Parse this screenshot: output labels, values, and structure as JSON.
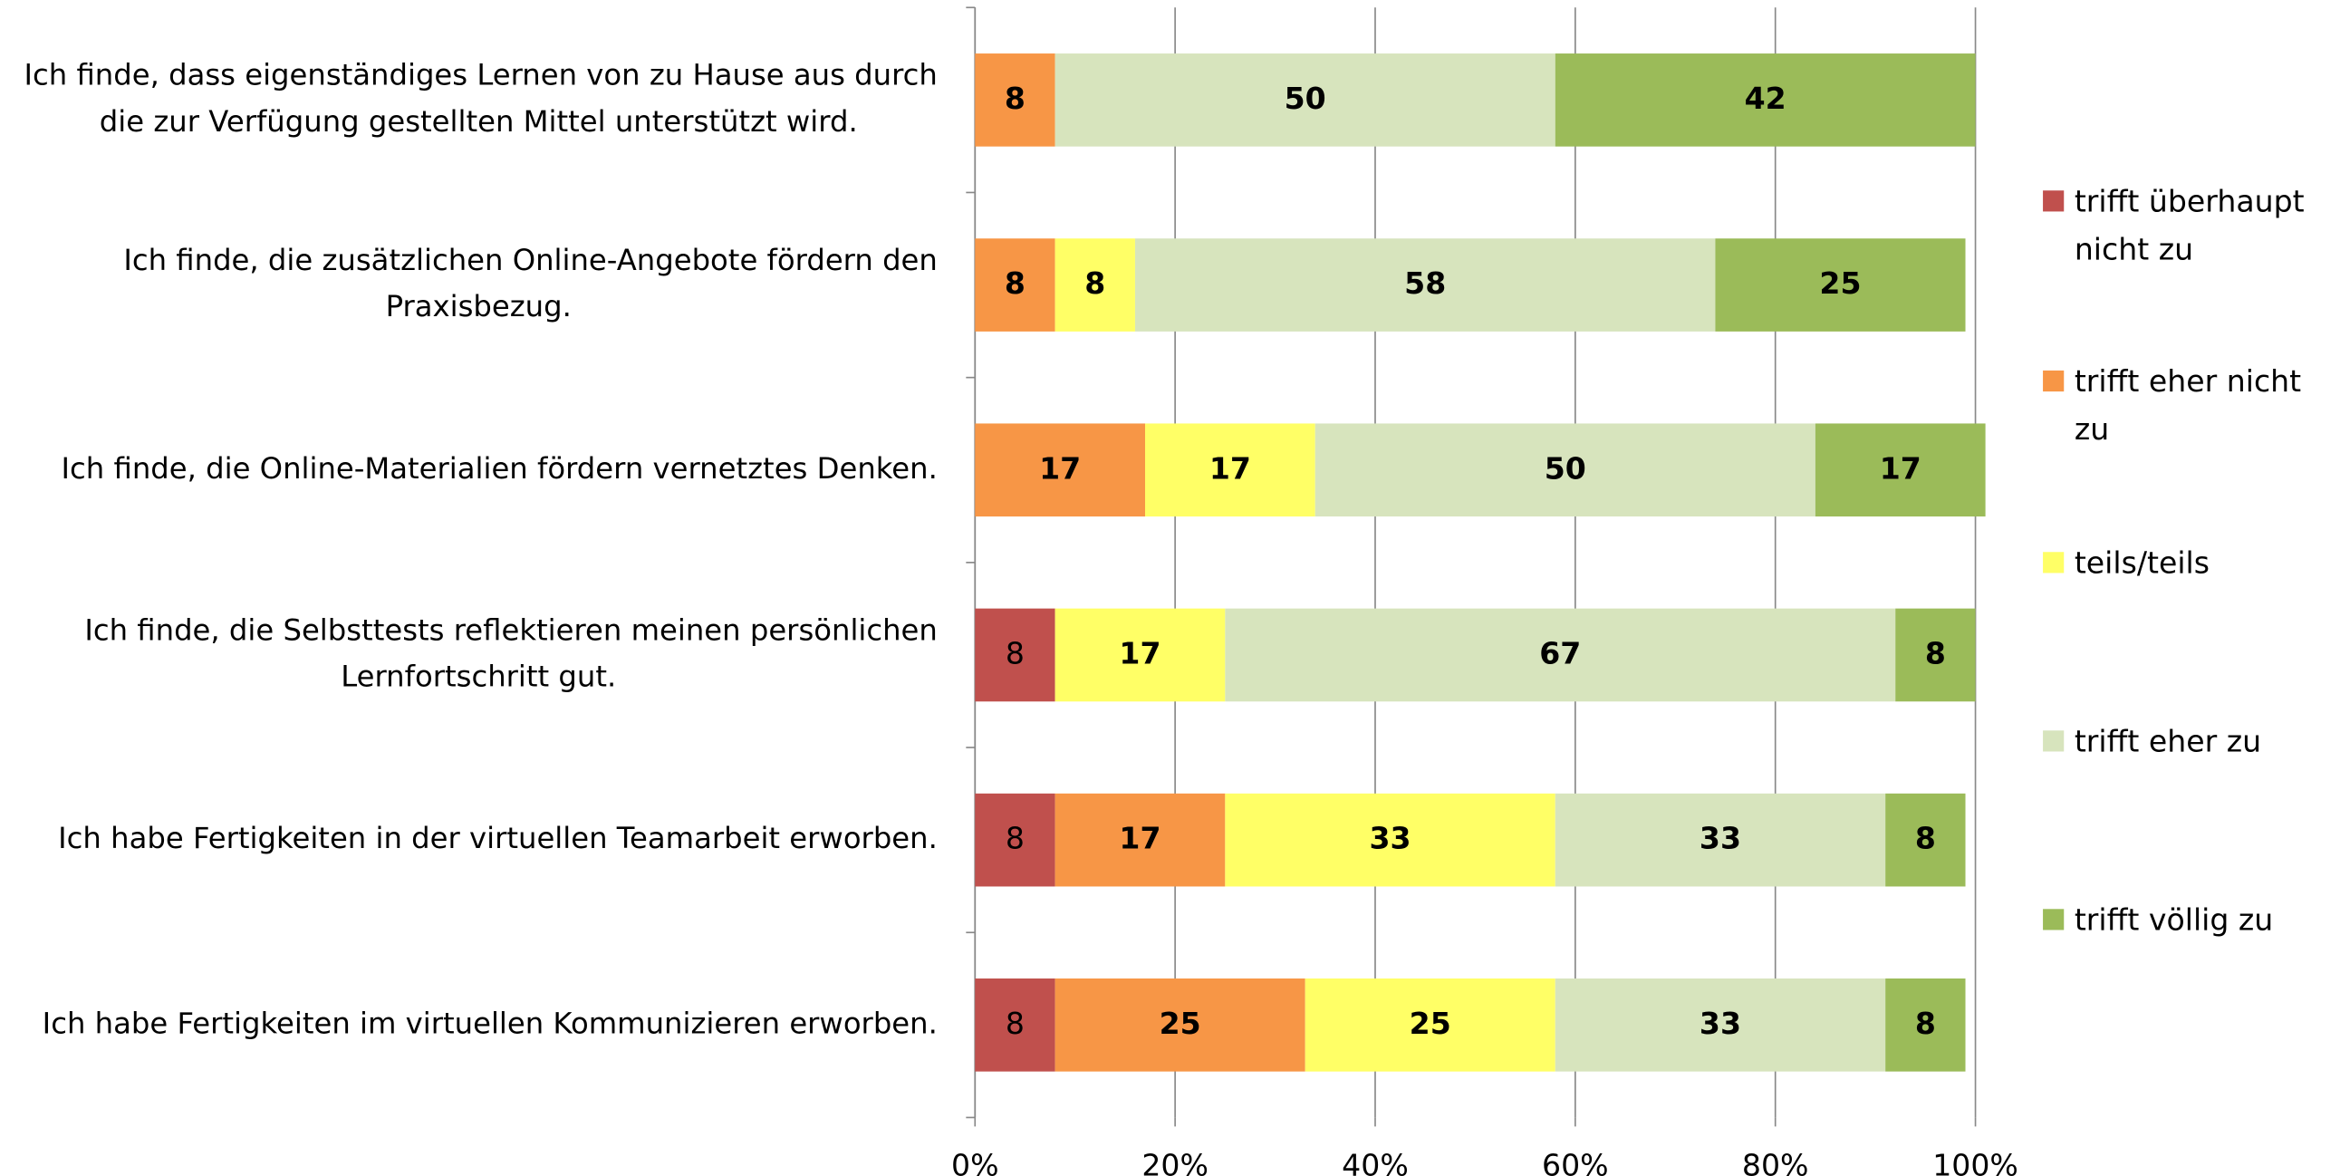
{
  "chart_data": {
    "type": "stacked_barh",
    "categories": [
      "Ich finde, dass eigenständiges Lernen von zu Hause aus durch die zur Verfügung gestellten Mittel unterstützt wird.",
      "Ich finde, die zusätzlichen Online-Angebote fördern den Praxisbezug.",
      "Ich finde, die Online-Materialien fördern vernetztes Denken.",
      "Ich finde, die Selbsttests reflektieren meinen persönlichen Lernfortschritt gut.",
      "Ich habe Fertigkeiten in der virtuellen Teamarbeit erworben.",
      "Ich habe Fertigkeiten im virtuellen Kommunizieren erworben."
    ],
    "series": [
      {
        "name": "trifft überhaupt nicht zu",
        "color": "#c0504d",
        "values": [
          null,
          null,
          null,
          8,
          8,
          8
        ]
      },
      {
        "name": "trifft eher nicht zu",
        "color": "#f79646",
        "values": [
          8,
          8,
          17,
          null,
          17,
          25
        ]
      },
      {
        "name": "teils/teils",
        "color": "#ffff66",
        "values": [
          null,
          8,
          17,
          17,
          33,
          25
        ]
      },
      {
        "name": "trifft eher zu",
        "color": "#d7e4bd",
        "values": [
          50,
          58,
          50,
          67,
          33,
          33
        ]
      },
      {
        "name": "trifft völlig zu",
        "color": "#9bbb59",
        "values": [
          42,
          25,
          17,
          8,
          8,
          8
        ]
      }
    ],
    "xlim": [
      0,
      100
    ],
    "xticks": [
      {
        "value": 0,
        "label": "0%"
      },
      {
        "value": 20,
        "label": "20%"
      },
      {
        "value": 40,
        "label": "40%"
      },
      {
        "value": 60,
        "label": "60%"
      },
      {
        "value": 80,
        "label": "80%"
      },
      {
        "value": 100,
        "label": "100%"
      }
    ],
    "grid": true,
    "legend": "right"
  }
}
